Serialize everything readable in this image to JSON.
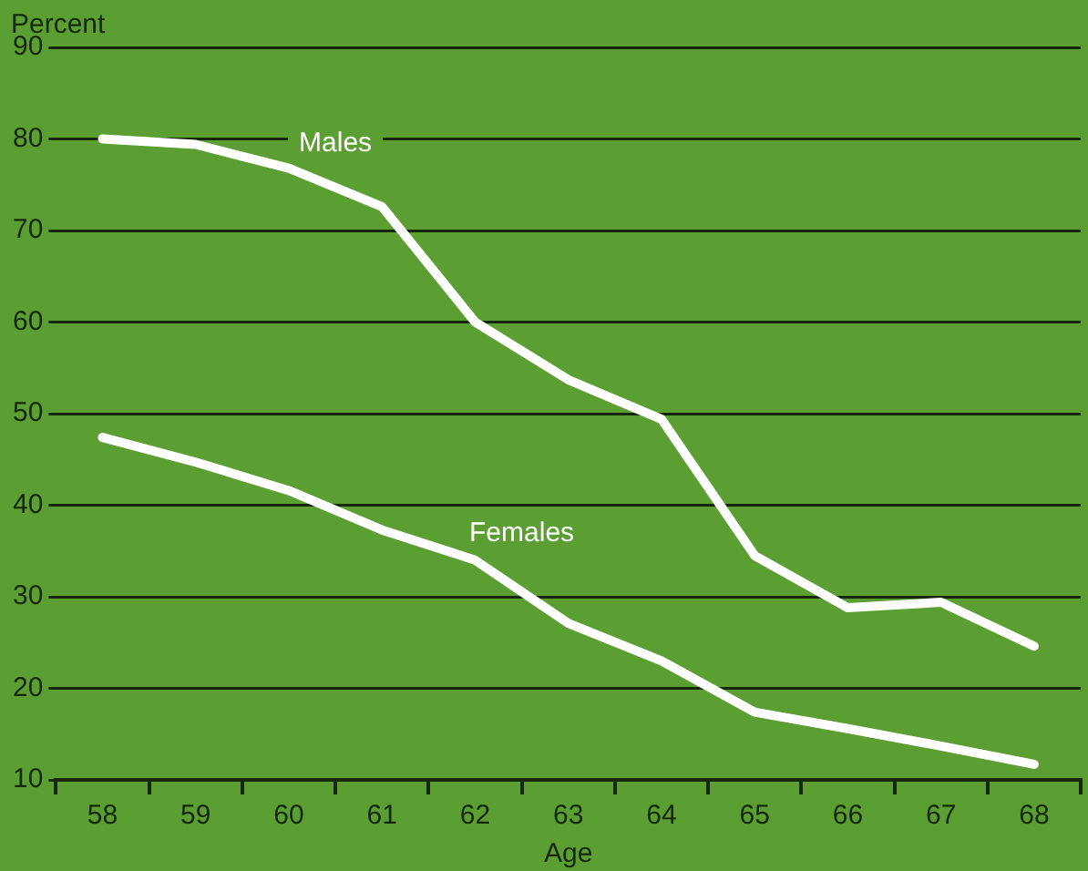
{
  "chart_data": {
    "type": "line",
    "xlabel": "Age",
    "ylabel": "Percent",
    "categories": [
      "58",
      "59",
      "60",
      "61",
      "62",
      "63",
      "64",
      "65",
      "66",
      "67",
      "68"
    ],
    "series": [
      {
        "name": "Males",
        "color": "#ffffff",
        "values": [
          80,
          79.4,
          76.8,
          72.6,
          60,
          53.7,
          49.4,
          34.5,
          28.8,
          29.4,
          24.6
        ]
      },
      {
        "name": "Females",
        "color": "#ffffff",
        "values": [
          47.4,
          44.7,
          41.6,
          37.3,
          34,
          27.1,
          23,
          17.4,
          15.6,
          13.7,
          11.7
        ]
      }
    ],
    "ylim": [
      10,
      90
    ],
    "yticks": [
      10,
      20,
      30,
      40,
      50,
      60,
      70,
      80,
      90
    ],
    "grid": "y",
    "legend": false,
    "marker": "none",
    "line_style": "solid"
  }
}
